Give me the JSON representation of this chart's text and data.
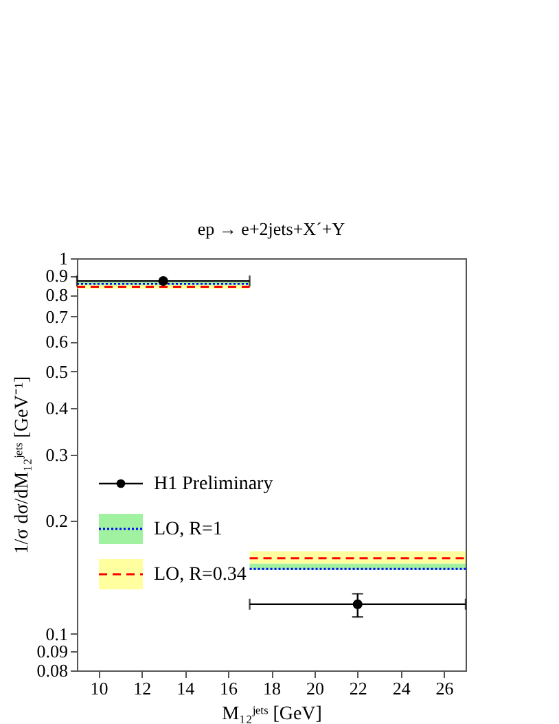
{
  "chart_data": {
    "type": "line",
    "title": "ep → e+2jets+X´+Y",
    "xlabel": "M₁₂ʲᵉᵗˢ [GeV]",
    "ylabel": "1/σ dσ/dM₁₂ʲᵉᵗˢ [GeV⁻¹]",
    "log": "y",
    "xlim": [
      9,
      27
    ],
    "ylim": [
      0.08,
      1
    ],
    "xticks": [
      10,
      12,
      14,
      16,
      18,
      20,
      22,
      24,
      26
    ],
    "yticks": [
      0.08,
      0.09,
      0.1,
      0.2,
      0.3,
      0.4,
      0.5,
      0.6,
      0.7,
      0.8,
      0.9,
      1
    ],
    "legend": "bottom left",
    "series": [
      {
        "name": "H1 Preliminary",
        "type": "scatter",
        "color": "#000000",
        "marker": "circle",
        "x": [
          13,
          22
        ],
        "values": [
          0.87,
          0.12
        ],
        "xerrors": [
          4,
          5
        ],
        "errors": [
          null,
          [
            0.111,
            0.128
          ]
        ]
      },
      {
        "name": "LO, R=1",
        "color": "#0000ff",
        "line_style": "dotted",
        "x": [
          9,
          17,
          null,
          17,
          27
        ],
        "values": [
          0.854,
          0.854,
          null,
          0.149,
          0.149
        ],
        "lower": [
          0.845,
          0.845,
          null,
          0.148,
          0.148
        ],
        "upper": [
          0.865,
          0.865,
          null,
          0.154,
          0.154
        ]
      },
      {
        "name": "LO, R=0.34",
        "color": "#ff0000",
        "line_style": "dashed",
        "x": [
          9,
          17,
          null,
          17,
          27
        ],
        "values": [
          0.84,
          0.84,
          null,
          0.159,
          0.159
        ],
        "lower": [
          0.83,
          0.83,
          null,
          0.154,
          0.154
        ],
        "upper": [
          0.85,
          0.85,
          null,
          0.166,
          0.166
        ]
      }
    ]
  }
}
